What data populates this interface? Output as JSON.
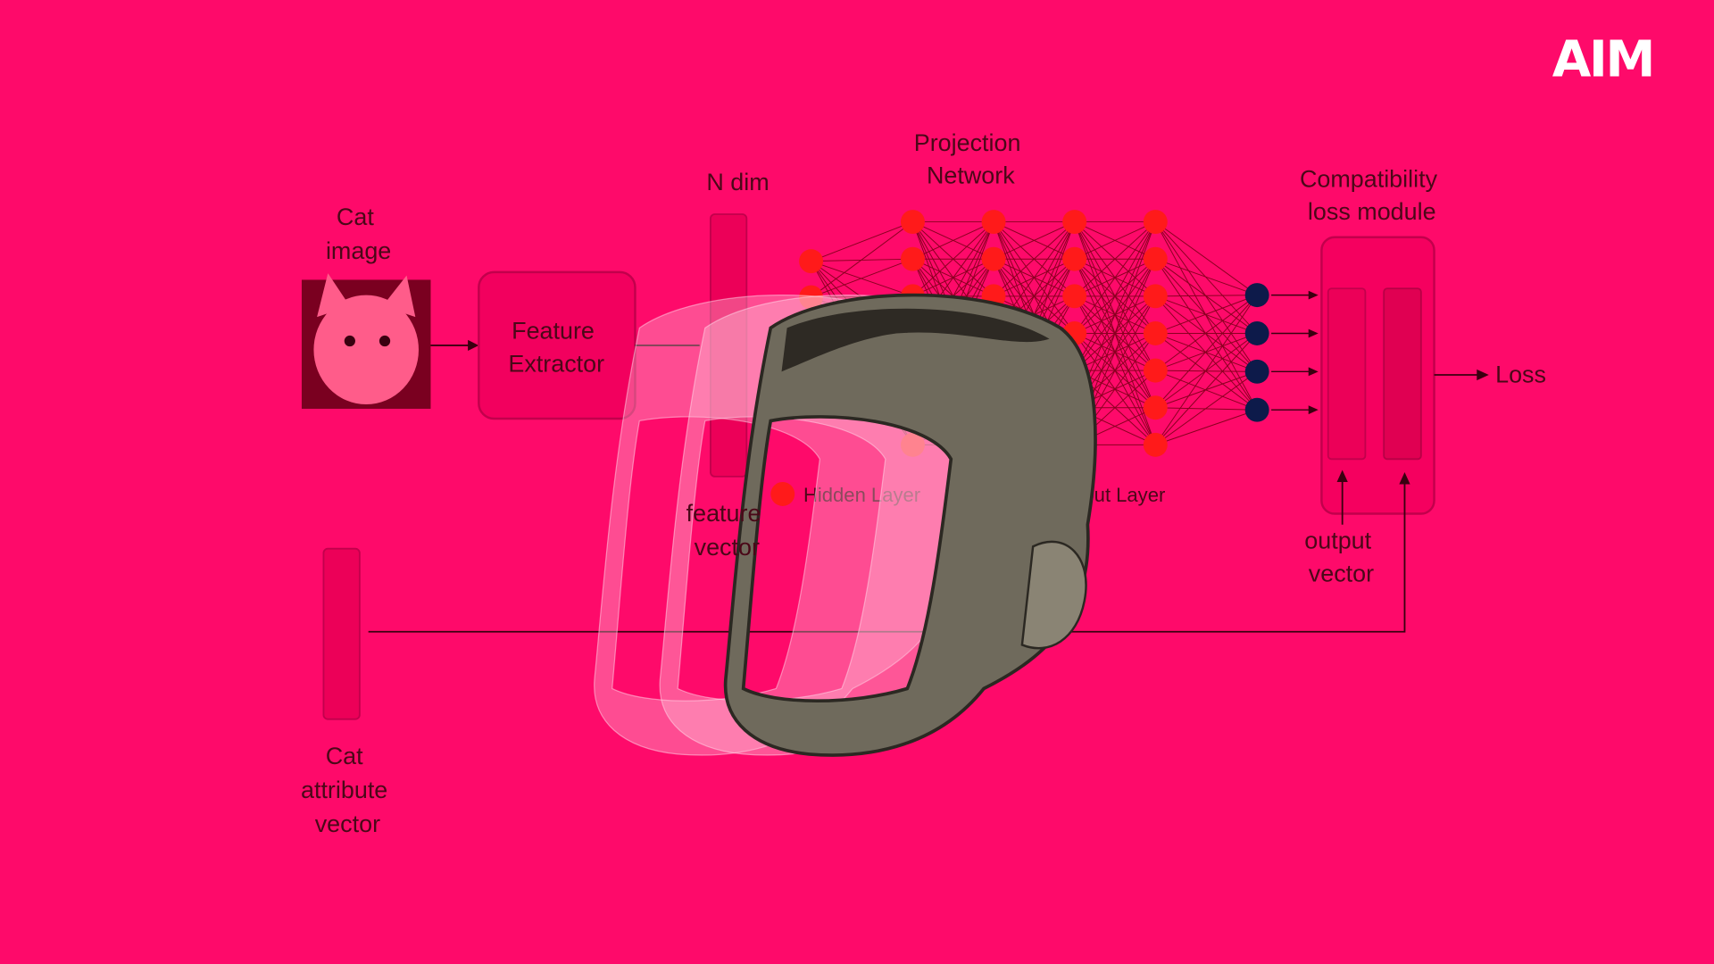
{
  "logo": "AIM",
  "cat_image": {
    "label": [
      "Cat",
      "image"
    ]
  },
  "feature_extractor": {
    "label": [
      "Feature",
      "Extractor"
    ]
  },
  "n_dim": {
    "label": "N dim"
  },
  "feature_vector": {
    "label": [
      "feature",
      "vector"
    ]
  },
  "projection_network": {
    "label": [
      "Projection",
      "Network"
    ]
  },
  "legend": {
    "hidden_layer": "Hidden Layer",
    "output_layer": "Output Layer"
  },
  "compatibility": {
    "label": [
      "Compatibility",
      "loss module"
    ]
  },
  "loss": "Loss",
  "output_vector": {
    "label": [
      "output",
      "vector"
    ]
  },
  "cat_attribute_vector": {
    "label": [
      "Cat",
      "attribute",
      "vector"
    ]
  }
}
